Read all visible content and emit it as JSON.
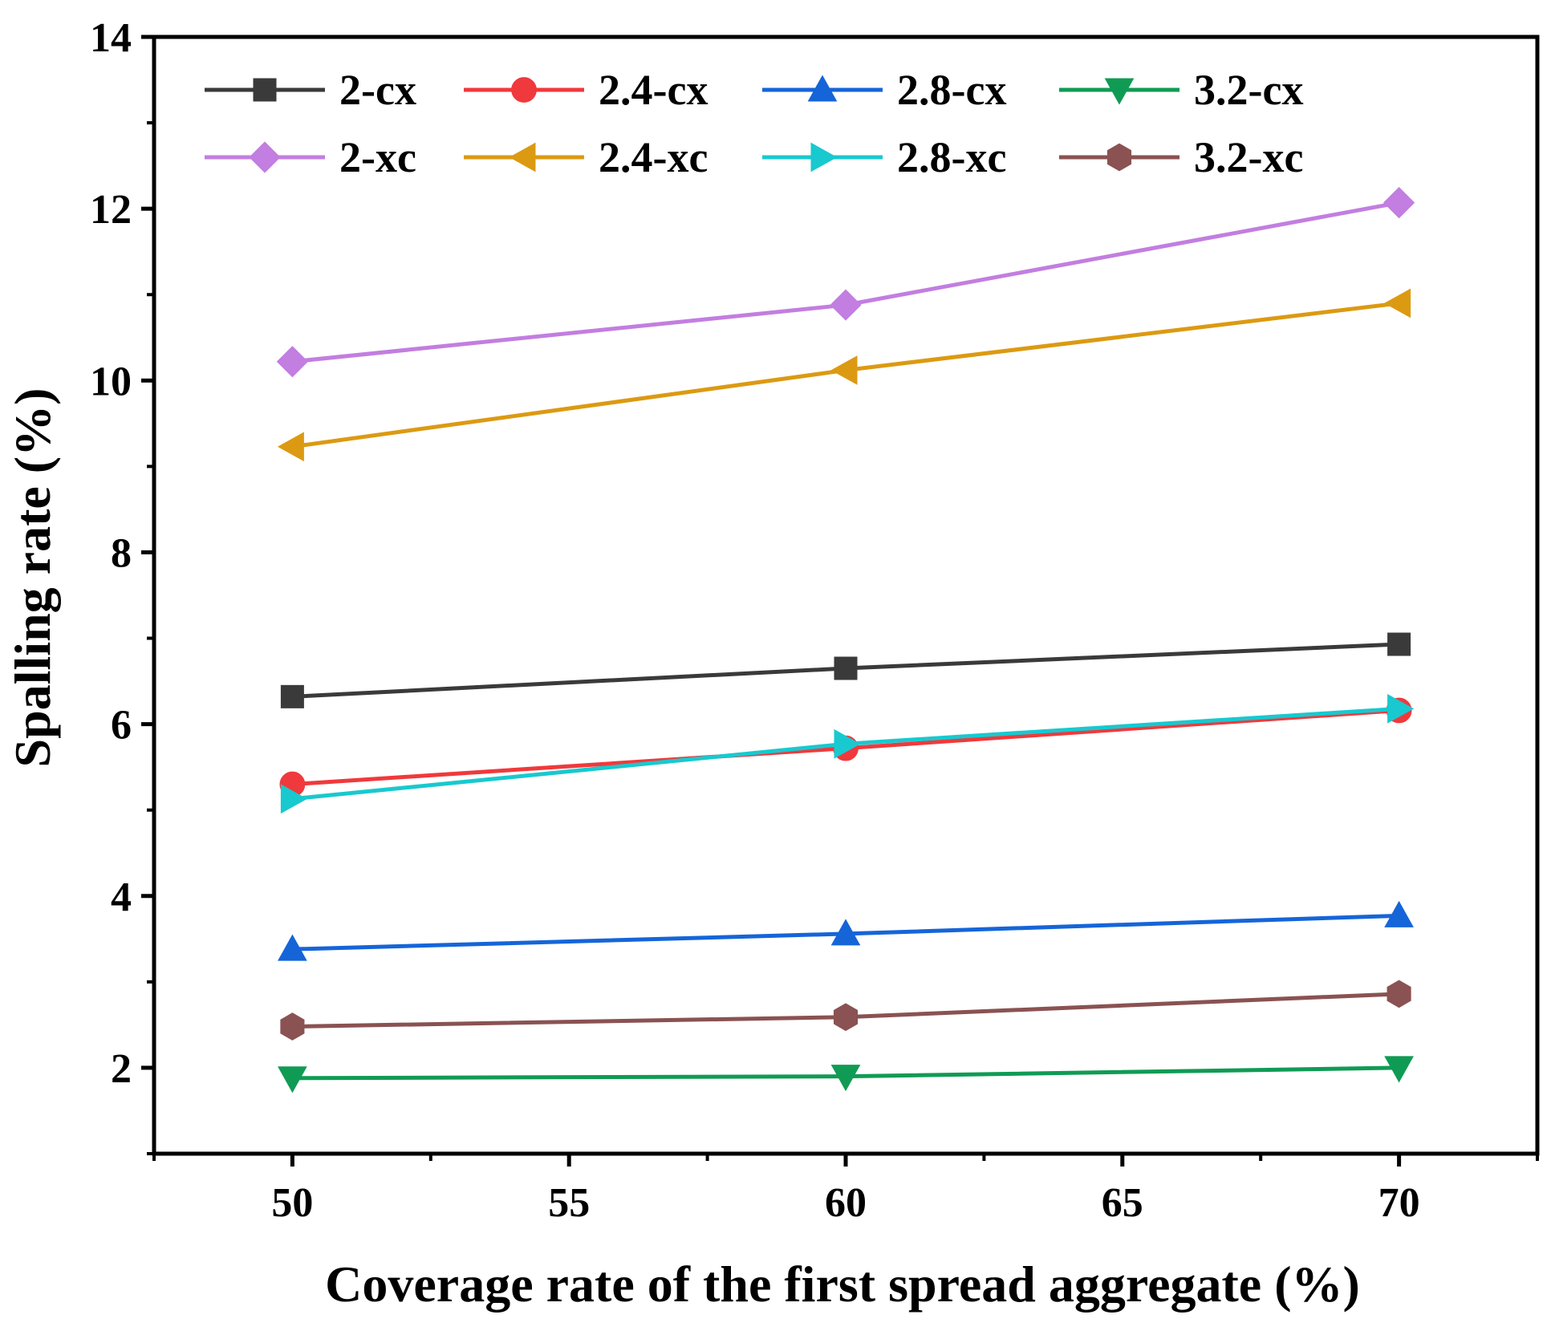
{
  "chart_data": {
    "type": "line",
    "title": "",
    "xlabel": "Coverage rate of the first spread aggregate (%)",
    "ylabel": "Spalling rate (%)",
    "x": [
      50,
      60,
      70
    ],
    "xlim": [
      47.5,
      72.5
    ],
    "ylim": [
      1,
      14
    ],
    "xticks": [
      50,
      55,
      60,
      65,
      70
    ],
    "yticks": [
      2,
      4,
      6,
      8,
      10,
      12,
      14
    ],
    "xtick_labels": [
      "50",
      "55",
      "60",
      "65",
      "70"
    ],
    "ytick_labels": [
      "2",
      "4",
      "6",
      "8",
      "10",
      "12",
      "14"
    ],
    "grid": false,
    "legend_position": "top",
    "series": [
      {
        "name": "2-cx",
        "color": "#3a3a3a",
        "marker": "square",
        "values": [
          6.32,
          6.65,
          6.93
        ]
      },
      {
        "name": "2.4-cx",
        "color": "#f0393c",
        "marker": "circle",
        "values": [
          5.3,
          5.72,
          6.16
        ]
      },
      {
        "name": "2.8-cx",
        "color": "#1565d8",
        "marker": "triangle-up",
        "values": [
          3.38,
          3.56,
          3.77
        ]
      },
      {
        "name": "3.2-cx",
        "color": "#109b54",
        "marker": "triangle-down",
        "values": [
          1.88,
          1.9,
          2.0
        ]
      },
      {
        "name": "2-xc",
        "color": "#c27ee0",
        "marker": "diamond",
        "values": [
          10.22,
          10.88,
          12.07
        ]
      },
      {
        "name": "2.4-xc",
        "color": "#dc9a12",
        "marker": "triangle-left",
        "values": [
          9.23,
          10.12,
          10.9
        ]
      },
      {
        "name": "2.8-xc",
        "color": "#18c9cf",
        "marker": "triangle-right",
        "values": [
          5.13,
          5.77,
          6.18
        ]
      },
      {
        "name": "3.2-xc",
        "color": "#8a5252",
        "marker": "hexagon",
        "values": [
          2.48,
          2.59,
          2.86
        ]
      }
    ]
  }
}
